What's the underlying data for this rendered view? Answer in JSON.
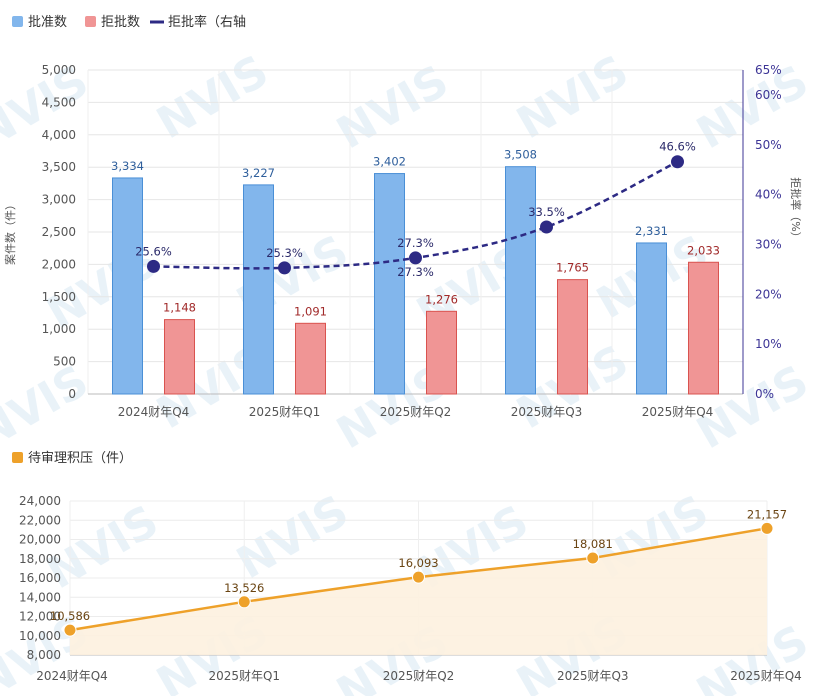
{
  "chart_data": [
    {
      "type": "bar",
      "categories": [
        "2024财年Q4",
        "2025财年Q1",
        "2025财年Q2",
        "2025财年Q3",
        "2025财年Q4"
      ],
      "series": [
        {
          "name": "批准数",
          "type": "bar",
          "axis": "left",
          "color": "#82b6ec",
          "values": [
            3334,
            3227,
            3402,
            3508,
            2331
          ],
          "labels": [
            "3,334",
            "3,227",
            "3,402",
            "3,508",
            "2,331"
          ]
        },
        {
          "name": "拒批数",
          "type": "bar",
          "axis": "left",
          "color": "#f09595",
          "values": [
            1148,
            1091,
            1276,
            1765,
            2033
          ],
          "labels": [
            "1,148",
            "1,091",
            "1,276",
            "1,765",
            "2,033"
          ]
        },
        {
          "name": "拒批率（右轴",
          "type": "line",
          "axis": "right",
          "color": "#2d2a84",
          "values": [
            25.6,
            25.3,
            27.3,
            33.5,
            46.6
          ],
          "labels": [
            "25.6%",
            "25.3%",
            "27.3%",
            "33.5%",
            "46.6%"
          ]
        }
      ],
      "ylabel": "案件数（件）",
      "ylabel_right": "拒批率（%）",
      "ylim": [
        0,
        5000
      ],
      "ylim_right": [
        0,
        65
      ],
      "yticks": [
        "0",
        "500",
        "1,000",
        "1,500",
        "2,000",
        "2,500",
        "3,000",
        "3,500",
        "4,000",
        "4,500",
        "5,000"
      ],
      "yticks_right": [
        "0%",
        "10%",
        "20%",
        "30%",
        "40%",
        "50%",
        "60%",
        "65%"
      ],
      "grid": true,
      "legend": "top-left"
    },
    {
      "type": "area",
      "categories": [
        "2024财年Q4",
        "2025财年Q1",
        "2025财年Q2",
        "2025财年Q3",
        "2025财年Q4"
      ],
      "series": [
        {
          "name": "待审理积压（件）",
          "color": "#eea12a",
          "values": [
            10586,
            13526,
            16093,
            18081,
            21157
          ],
          "labels": [
            "10,586",
            "13,526",
            "16,093",
            "18,081",
            "21,157"
          ]
        }
      ],
      "ylim": [
        8000,
        24000
      ],
      "yticks": [
        "8,000",
        "10,000",
        "12,000",
        "14,000",
        "16,000",
        "18,000",
        "20,000",
        "22,000",
        "24,000"
      ],
      "grid": true,
      "legend": "top-left"
    }
  ],
  "watermark": "NVIS",
  "colors": {
    "approve": "#82b6ec",
    "reject": "#f09595",
    "rate": "#2d2a84",
    "backlog": "#eea12a"
  }
}
